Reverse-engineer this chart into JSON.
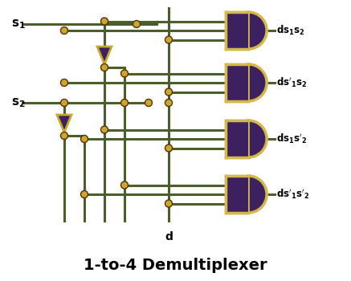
{
  "bg_color": "#ffffff",
  "wire_color": "#4a5e2a",
  "gate_fill": "#3d2060",
  "gate_edge": "#d4b84a",
  "dot_color": "#c8a830",
  "dot_edge": "#5a3000",
  "inv_fill": "#c8a830",
  "inv_purple": "#3d2060",
  "title": "1-to-4 Demultiplexer",
  "title_fontsize": 14,
  "wire_lw": 2.2,
  "gate_lw": 2.5,
  "dot_r": 4.5
}
